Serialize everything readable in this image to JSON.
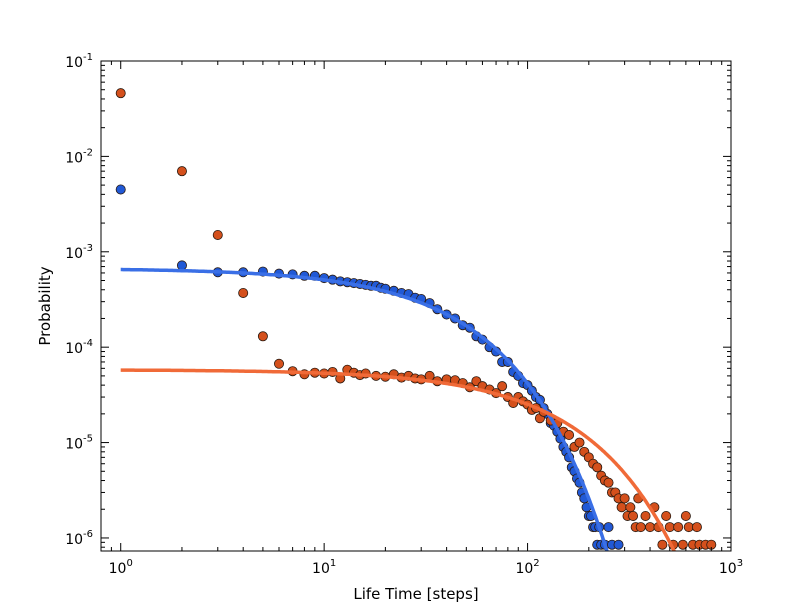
{
  "chart_data": {
    "type": "scatter",
    "title": "",
    "xlabel": "Life Time [steps]",
    "ylabel": "Probability",
    "xscale": "log",
    "yscale": "log",
    "xlim": [
      0.8,
      1000
    ],
    "ylim": [
      7.3e-07,
      0.1
    ],
    "grid": false,
    "x_ticks": [
      {
        "value": 1,
        "base": "10",
        "exp": "0"
      },
      {
        "value": 10,
        "base": "10",
        "exp": "1"
      },
      {
        "value": 100,
        "base": "10",
        "exp": "2"
      },
      {
        "value": 1000,
        "base": "10",
        "exp": "3"
      }
    ],
    "y_ticks": [
      {
        "value": 1e-06,
        "base": "10",
        "exp": "-6"
      },
      {
        "value": 1e-05,
        "base": "10",
        "exp": "-5"
      },
      {
        "value": 0.0001,
        "base": "10",
        "exp": "-4"
      },
      {
        "value": 0.001,
        "base": "10",
        "exp": "-3"
      },
      {
        "value": 0.01,
        "base": "10",
        "exp": "-2"
      },
      {
        "value": 0.1,
        "base": "10",
        "exp": "-1"
      }
    ],
    "series": [
      {
        "name": "blue data",
        "kind": "points",
        "color": "#2159d6",
        "x": [
          1,
          2,
          3,
          4,
          5,
          6,
          7,
          8,
          9,
          10,
          11,
          12,
          13,
          14,
          15,
          16,
          17,
          18,
          19,
          20,
          22,
          24,
          26,
          28,
          30,
          33,
          36,
          40,
          44,
          48,
          52,
          56,
          60,
          65,
          70,
          75,
          80,
          85,
          90,
          95,
          100,
          105,
          110,
          115,
          120,
          125,
          130,
          135,
          140,
          145,
          150,
          155,
          160,
          165,
          170,
          175,
          180,
          185,
          190,
          195,
          200,
          205,
          210,
          215,
          220,
          225,
          230,
          240,
          250,
          260,
          280
        ],
        "y": [
          0.0045,
          0.00072,
          0.00061,
          0.00061,
          0.00062,
          0.00059,
          0.00058,
          0.00056,
          0.00056,
          0.00053,
          0.00051,
          0.00049,
          0.00048,
          0.00047,
          0.00046,
          0.00045,
          0.00044,
          0.00044,
          0.00042,
          0.00041,
          0.00039,
          0.00037,
          0.00036,
          0.00033,
          0.00032,
          0.00029,
          0.00025,
          0.00022,
          0.0002,
          0.00017,
          0.00016,
          0.00013,
          0.00012,
          0.0001,
          9e-05,
          7e-05,
          7e-05,
          5.5e-05,
          5e-05,
          4.2e-05,
          4e-05,
          3.5e-05,
          3e-05,
          2.8e-05,
          2.3e-05,
          2e-05,
          1.6e-05,
          1.5e-05,
          1.3e-05,
          1.1e-05,
          9e-06,
          8e-06,
          7e-06,
          5.5e-06,
          5e-06,
          4.2e-06,
          3.8e-06,
          3e-06,
          2.6e-06,
          2.1e-06,
          1.7e-06,
          1.7e-06,
          1.3e-06,
          1.3e-06,
          8.5e-07,
          1.3e-06,
          8.5e-07,
          8.5e-07,
          1.3e-06,
          8.5e-07,
          8.5e-07
        ]
      },
      {
        "name": "orange data",
        "kind": "points",
        "color": "#d4501c",
        "x": [
          1,
          2,
          3,
          4,
          5,
          6,
          7,
          8,
          9,
          10,
          11,
          12,
          13,
          14,
          15,
          16,
          18,
          20,
          22,
          24,
          26,
          28,
          30,
          33,
          36,
          40,
          44,
          48,
          52,
          56,
          60,
          65,
          70,
          75,
          80,
          85,
          90,
          95,
          100,
          105,
          110,
          115,
          120,
          130,
          140,
          150,
          160,
          170,
          180,
          190,
          200,
          210,
          220,
          230,
          240,
          250,
          260,
          270,
          280,
          290,
          300,
          310,
          320,
          330,
          340,
          350,
          360,
          380,
          400,
          420,
          440,
          460,
          480,
          500,
          520,
          550,
          580,
          600,
          620,
          650,
          680,
          700,
          750,
          800
        ],
        "y": [
          0.046,
          0.007,
          0.0015,
          0.00037,
          0.00013,
          6.7e-05,
          5.6e-05,
          5.2e-05,
          5.4e-05,
          5.3e-05,
          5.5e-05,
          4.7e-05,
          5.8e-05,
          5.4e-05,
          5.1e-05,
          5.3e-05,
          5e-05,
          4.9e-05,
          5.2e-05,
          4.8e-05,
          5e-05,
          4.7e-05,
          4.6e-05,
          5e-05,
          4.4e-05,
          4.6e-05,
          4.5e-05,
          4.2e-05,
          3.8e-05,
          4.4e-05,
          3.9e-05,
          3.6e-05,
          3.3e-05,
          3.9e-05,
          3e-05,
          2.6e-05,
          3e-05,
          2.7e-05,
          2.5e-05,
          2.2e-05,
          2.3e-05,
          1.8e-05,
          2.1e-05,
          1.7e-05,
          1.6e-05,
          1.3e-05,
          1.2e-05,
          9e-06,
          1e-05,
          8e-06,
          7e-06,
          6e-06,
          5.5e-06,
          4.5e-06,
          4e-06,
          3.8e-06,
          3e-06,
          3e-06,
          2.6e-06,
          2.1e-06,
          2.6e-06,
          1.7e-06,
          2.1e-06,
          1.7e-06,
          1.3e-06,
          2.6e-06,
          1.3e-06,
          1.7e-06,
          1.3e-06,
          2.1e-06,
          1.3e-06,
          8.5e-07,
          1.7e-06,
          1.3e-06,
          8.5e-07,
          1.3e-06,
          8.5e-07,
          1.7e-06,
          1.3e-06,
          8.5e-07,
          1.3e-06,
          8.5e-07,
          8.5e-07,
          8.5e-07
        ]
      },
      {
        "name": "blue fit",
        "kind": "line",
        "color": "#3a6fe6",
        "model": "A*exp(-x/tau)",
        "A": 0.00067,
        "tau": 36,
        "x_range": [
          1,
          300
        ]
      },
      {
        "name": "orange fit",
        "kind": "line",
        "color": "#f06a38",
        "model": "A*exp(-x/tau)",
        "A": 5.8e-05,
        "tau": 120,
        "x_range": [
          1,
          700
        ]
      }
    ]
  }
}
